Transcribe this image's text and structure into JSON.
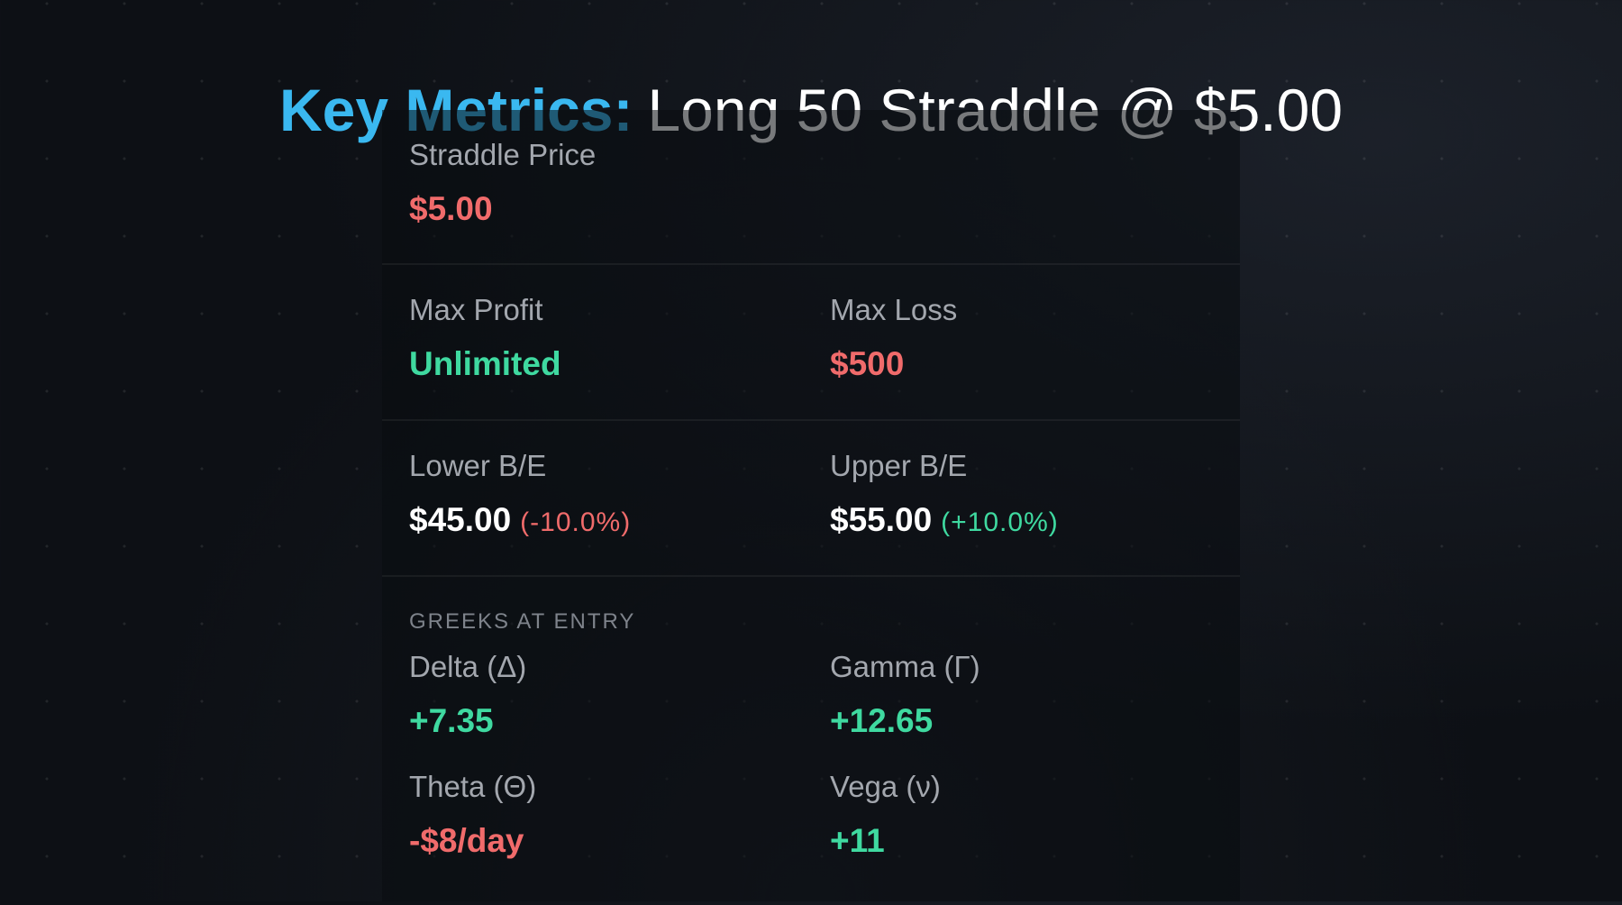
{
  "title": {
    "highlight": "Key Metrics:",
    "rest": "Long 50 Straddle @ $5.00"
  },
  "straddle_price": {
    "label": "Straddle Price",
    "value": "$5.00"
  },
  "max_profit": {
    "label": "Max Profit",
    "value": "Unlimited"
  },
  "max_loss": {
    "label": "Max Loss",
    "value": "$500"
  },
  "lower_be": {
    "label": "Lower B/E",
    "value": "$45.00",
    "change": "(-10.0%)"
  },
  "upper_be": {
    "label": "Upper B/E",
    "value": "$55.00",
    "change": "(+10.0%)"
  },
  "greeks": {
    "heading": "GREEKS AT ENTRY",
    "delta": {
      "label": "Delta (Δ)",
      "value": "+7.35"
    },
    "gamma": {
      "label": "Gamma (Γ)",
      "value": "+12.65"
    },
    "theta": {
      "label": "Theta (Θ)",
      "value": "-$8/day"
    },
    "vega": {
      "label": "Vega (ν)",
      "value": "+11"
    }
  },
  "colors": {
    "title_accent": "#3ab8f0",
    "positive": "#3fd9a0",
    "negative": "#f06b6b",
    "background": "#0d1015"
  }
}
